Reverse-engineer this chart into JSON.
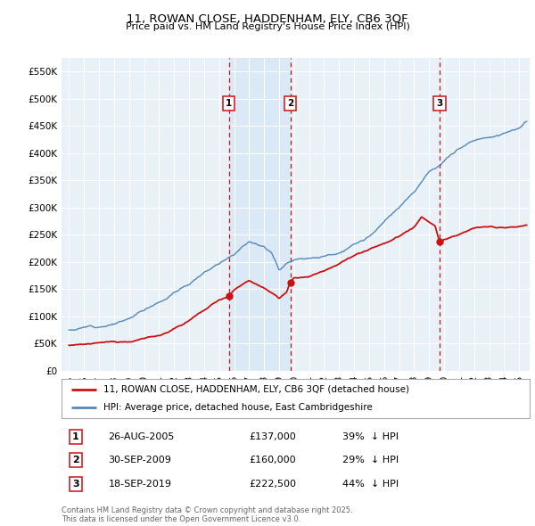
{
  "title": "11, ROWAN CLOSE, HADDENHAM, ELY, CB6 3QF",
  "subtitle": "Price paid vs. HM Land Registry's House Price Index (HPI)",
  "background_color": "#ffffff",
  "plot_bg_color": "#e8f0f8",
  "grid_color": "#ffffff",
  "hpi_color": "#5588bb",
  "price_color": "#cc1111",
  "vline_color": "#cc1111",
  "ylim": [
    0,
    575000
  ],
  "yticks": [
    0,
    50000,
    100000,
    150000,
    200000,
    250000,
    300000,
    350000,
    400000,
    450000,
    500000,
    550000
  ],
  "ytick_labels": [
    "£0",
    "£50K",
    "£100K",
    "£150K",
    "£200K",
    "£250K",
    "£300K",
    "£350K",
    "£400K",
    "£450K",
    "£500K",
    "£550K"
  ],
  "transactions": [
    {
      "label": "1",
      "date": "26-AUG-2005",
      "price": 137000,
      "price_str": "£137,000",
      "pct": "39%",
      "year": 2005.65
    },
    {
      "label": "2",
      "date": "30-SEP-2009",
      "price": 160000,
      "price_str": "£160,000",
      "pct": "29%",
      "year": 2009.75
    },
    {
      "label": "3",
      "date": "18-SEP-2019",
      "price": 222500,
      "price_str": "£222,500",
      "pct": "44%",
      "year": 2019.71
    }
  ],
  "legend_property_label": "11, ROWAN CLOSE, HADDENHAM, ELY, CB6 3QF (detached house)",
  "legend_hpi_label": "HPI: Average price, detached house, East Cambridgeshire",
  "footer_text": "Contains HM Land Registry data © Crown copyright and database right 2025.\nThis data is licensed under the Open Government Licence v3.0.",
  "xlim": [
    1994.5,
    2025.7
  ],
  "xticks": [
    1995,
    1996,
    1997,
    1998,
    1999,
    2000,
    2001,
    2002,
    2003,
    2004,
    2005,
    2006,
    2007,
    2008,
    2009,
    2010,
    2011,
    2012,
    2013,
    2014,
    2015,
    2016,
    2017,
    2018,
    2019,
    2020,
    2021,
    2022,
    2023,
    2024,
    2025
  ]
}
